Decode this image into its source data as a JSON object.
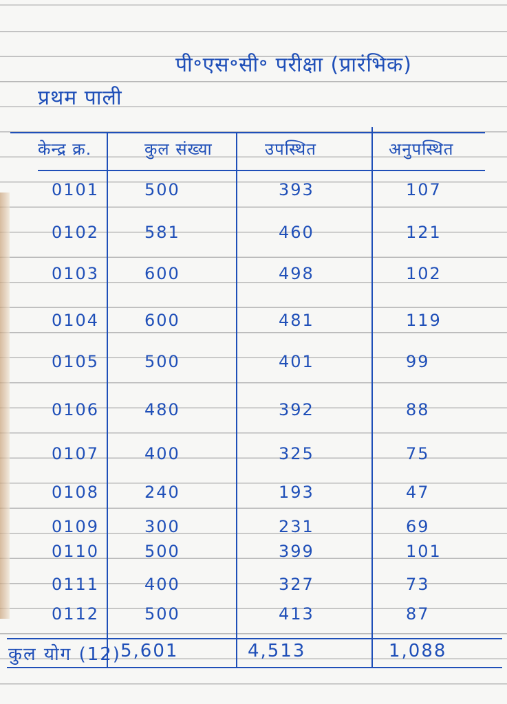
{
  "title": "पी॰एस॰सी॰ परीक्षा (प्रारंभिक)",
  "shift": "प्रथम पाली",
  "ink_color": "#1f4fb8",
  "table": {
    "headers": [
      "केन्द्र क्र.",
      "कुल संख्या",
      "उपस्थित",
      "अनुपस्थित"
    ],
    "rows": [
      [
        "0101",
        "500",
        "393",
        "107"
      ],
      [
        "0102",
        "581",
        "460",
        "121"
      ],
      [
        "0103",
        "600",
        "498",
        "102"
      ],
      [
        "0104",
        "600",
        "481",
        "119"
      ],
      [
        "0105",
        "500",
        "401",
        "99"
      ],
      [
        "0106",
        "480",
        "392",
        "88"
      ],
      [
        "0107",
        "400",
        "325",
        "75"
      ],
      [
        "0108",
        "240",
        "193",
        "47"
      ],
      [
        "0109",
        "300",
        "231",
        "69"
      ],
      [
        "0110",
        "500",
        "399",
        "101"
      ],
      [
        "0111",
        "400",
        "327",
        "73"
      ],
      [
        "0112",
        "500",
        "413",
        "87"
      ]
    ],
    "total": {
      "label": "कुल योग (12)",
      "total_count": "5,601",
      "present": "4,513",
      "absent": "1,088"
    }
  }
}
